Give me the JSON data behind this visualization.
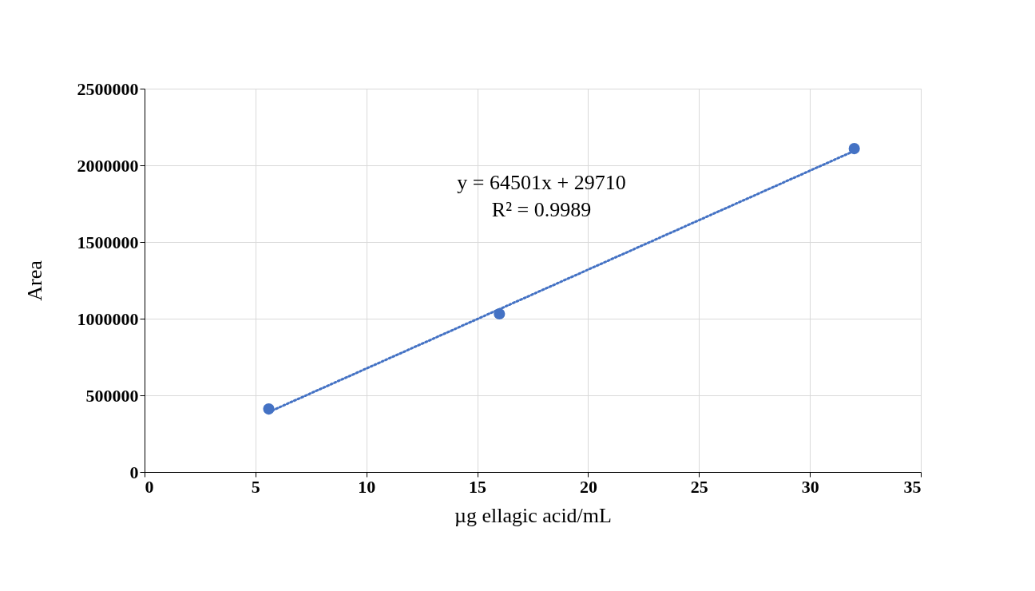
{
  "chart_data": {
    "type": "scatter",
    "xlabel": "µg ellagic acid/mL",
    "ylabel": "Area",
    "series": [
      {
        "type": "scatter",
        "color": "#4472c4",
        "marker": "circle",
        "x": [
          5.6,
          16,
          32
        ],
        "values": [
          411000,
          1031000,
          2109000
        ]
      },
      {
        "type": "line",
        "color": "#4472c4",
        "line_style": "dotted",
        "marker": "none",
        "x": [
          5.6,
          32
        ],
        "values": [
          391000,
          2094000
        ]
      }
    ],
    "annotations": [
      "y = 64501x + 29710",
      "R² = 0.9989"
    ],
    "xlim": [
      0,
      35
    ],
    "xticks": [
      0,
      5,
      10,
      15,
      20,
      25,
      30,
      35
    ],
    "ylim": [
      0,
      2500000
    ],
    "yticks": [
      0,
      500000,
      1000000,
      1500000,
      2000000,
      2500000
    ],
    "grid": true
  }
}
